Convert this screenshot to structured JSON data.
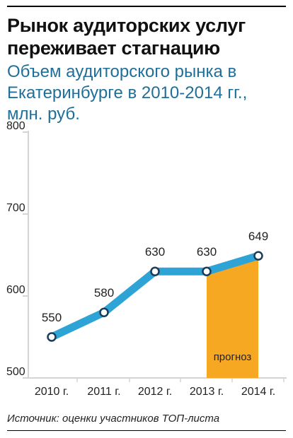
{
  "header": {
    "title": "Рынок аудиторских услуг переживает стагнацию",
    "subtitle": "Объем аудиторского рынка в Екатеринбурге в 2010-2014 гг., млн. руб."
  },
  "footer": {
    "source": "Источник: оценки участников ТОП-листа"
  },
  "colors": {
    "line": "#2ea3d6",
    "forecast": "#f7a823",
    "axis": "#d4d4d4",
    "marker_stroke": "#1b3d57"
  },
  "chart_data": {
    "type": "line",
    "title": "Объем аудиторского рынка в Екатеринбурге в 2010-2014 гг., млн. руб.",
    "categories": [
      "2010 г.",
      "2011 г.",
      "2012 г.",
      "2013 г.",
      "2014 г."
    ],
    "values": [
      550,
      580,
      630,
      630,
      649
    ],
    "data_labels": [
      "550",
      "580",
      "630",
      "630",
      "649"
    ],
    "ylim": [
      500,
      800
    ],
    "yticks": [
      500,
      600,
      700,
      800
    ],
    "grid": false,
    "forecast": {
      "from": "2013 г.",
      "to": "2014 г.",
      "label": "прогноз"
    }
  }
}
